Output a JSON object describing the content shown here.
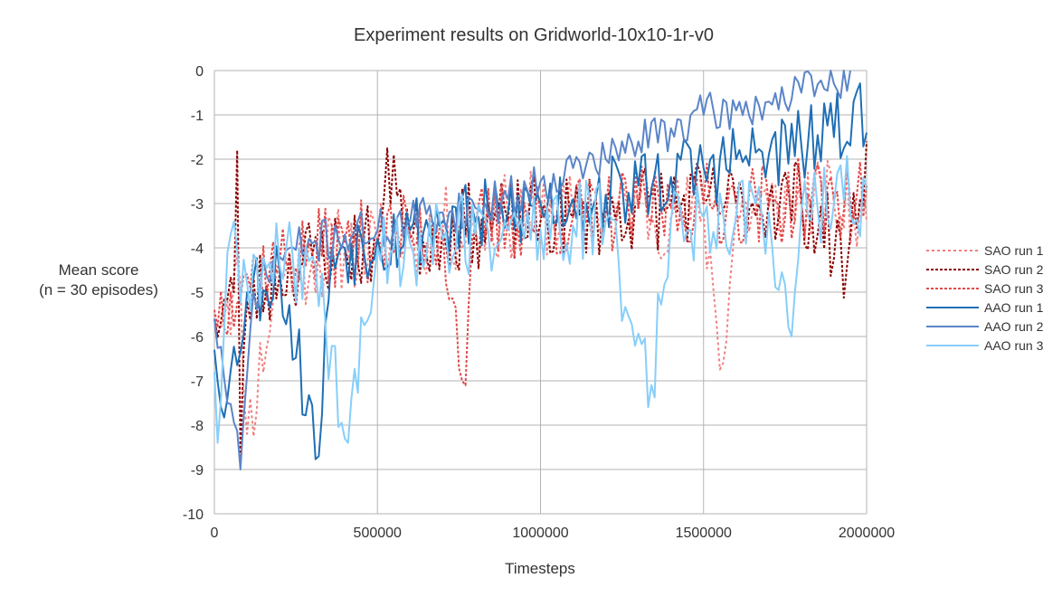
{
  "chart_data": {
    "type": "line",
    "title": "Experiment results on Gridworld-10x10-1r-v0",
    "xlabel": "Timesteps",
    "ylabel": [
      "Mean score",
      "(n = 30 episodes)"
    ],
    "xlim": [
      0,
      2000000
    ],
    "ylim": [
      -10,
      0
    ],
    "xticks": [
      0,
      500000,
      1000000,
      1500000,
      2000000
    ],
    "yticks": [
      0,
      -1,
      -2,
      -3,
      -4,
      -5,
      -6,
      -7,
      -8,
      -9,
      -10
    ],
    "grid": true,
    "legend_position": "right",
    "x_step": 10000,
    "series": [
      {
        "name": "SAO run 1",
        "color": "#f08080",
        "dash": "3,3",
        "anchors": [
          [
            0,
            -5.5
          ],
          [
            40000,
            -5.2
          ],
          [
            80000,
            -4.8
          ],
          [
            100000,
            -8.2
          ],
          [
            200000,
            -4.5
          ],
          [
            300000,
            -4.3
          ],
          [
            400000,
            -4.0
          ],
          [
            500000,
            -3.9
          ],
          [
            600000,
            -3.7
          ],
          [
            700000,
            -3.6
          ],
          [
            800000,
            -3.5
          ],
          [
            900000,
            -3.3
          ],
          [
            1000000,
            -3.2
          ],
          [
            1100000,
            -3.3
          ],
          [
            1200000,
            -3.2
          ],
          [
            1300000,
            -3.1
          ],
          [
            1400000,
            -3.3
          ],
          [
            1500000,
            -3.2
          ],
          [
            1560000,
            -6.6
          ],
          [
            1600000,
            -3.2
          ],
          [
            1700000,
            -3.1
          ],
          [
            1800000,
            -3.0
          ],
          [
            1900000,
            -3.0
          ],
          [
            2000000,
            -3.4
          ]
        ],
        "noise": 1.0,
        "seed": 11
      },
      {
        "name": "SAO run 2",
        "color": "#8b0000",
        "dash": "3,2",
        "anchors": [
          [
            0,
            -5.6
          ],
          [
            60000,
            -5.0
          ],
          [
            70000,
            -1.8
          ],
          [
            80000,
            -8.7
          ],
          [
            100000,
            -5.2
          ],
          [
            200000,
            -4.6
          ],
          [
            300000,
            -4.2
          ],
          [
            400000,
            -4.0
          ],
          [
            500000,
            -3.9
          ],
          [
            550000,
            -1.9
          ],
          [
            600000,
            -3.8
          ],
          [
            700000,
            -3.6
          ],
          [
            800000,
            -3.5
          ],
          [
            900000,
            -3.4
          ],
          [
            1000000,
            -3.4
          ],
          [
            1100000,
            -3.3
          ],
          [
            1200000,
            -3.2
          ],
          [
            1300000,
            -3.1
          ],
          [
            1400000,
            -3.0
          ],
          [
            1500000,
            -3.0
          ],
          [
            1600000,
            -3.0
          ],
          [
            1700000,
            -2.9
          ],
          [
            1800000,
            -2.9
          ],
          [
            1940000,
            -4.4
          ],
          [
            2000000,
            -1.6
          ]
        ],
        "noise": 1.0,
        "seed": 23
      },
      {
        "name": "SAO run 3",
        "color": "#e34a4a",
        "dash": "3,2",
        "anchors": [
          [
            0,
            -5.4
          ],
          [
            50000,
            -5.0
          ],
          [
            100000,
            -4.6
          ],
          [
            200000,
            -4.3
          ],
          [
            300000,
            -4.1
          ],
          [
            400000,
            -3.9
          ],
          [
            500000,
            -3.8
          ],
          [
            600000,
            -3.7
          ],
          [
            700000,
            -3.6
          ],
          [
            770000,
            -7.1
          ],
          [
            800000,
            -3.5
          ],
          [
            900000,
            -3.4
          ],
          [
            1000000,
            -3.3
          ],
          [
            1100000,
            -3.3
          ],
          [
            1200000,
            -3.2
          ],
          [
            1300000,
            -3.1
          ],
          [
            1400000,
            -3.1
          ],
          [
            1500000,
            -3.0
          ],
          [
            1600000,
            -3.0
          ],
          [
            1700000,
            -3.0
          ],
          [
            1800000,
            -2.9
          ],
          [
            1900000,
            -2.9
          ],
          [
            2000000,
            -2.6
          ]
        ],
        "noise": 0.95,
        "seed": 37
      },
      {
        "name": "AAO run 1",
        "color": "#1f6fb5",
        "dash": "",
        "anchors": [
          [
            0,
            -6.3
          ],
          [
            40000,
            -7.4
          ],
          [
            100000,
            -5.0
          ],
          [
            200000,
            -4.5
          ],
          [
            320000,
            -8.7
          ],
          [
            360000,
            -4.0
          ],
          [
            400000,
            -4.0
          ],
          [
            500000,
            -3.8
          ],
          [
            600000,
            -3.6
          ],
          [
            700000,
            -3.4
          ],
          [
            800000,
            -3.4
          ],
          [
            900000,
            -3.2
          ],
          [
            1000000,
            -3.0
          ],
          [
            1100000,
            -2.9
          ],
          [
            1200000,
            -2.8
          ],
          [
            1300000,
            -2.6
          ],
          [
            1400000,
            -2.4
          ],
          [
            1500000,
            -2.2
          ],
          [
            1600000,
            -2.0
          ],
          [
            1700000,
            -1.9
          ],
          [
            1800000,
            -1.7
          ],
          [
            1900000,
            -1.5
          ],
          [
            1960000,
            -0.7
          ],
          [
            2000000,
            -1.4
          ]
        ],
        "noise": 0.9,
        "seed": 53
      },
      {
        "name": "AAO run 2",
        "color": "#5b85c8",
        "dash": "",
        "anchors": [
          [
            0,
            -5.6
          ],
          [
            80000,
            -9.0
          ],
          [
            120000,
            -5.0
          ],
          [
            200000,
            -4.2
          ],
          [
            300000,
            -3.9
          ],
          [
            400000,
            -3.7
          ],
          [
            500000,
            -3.6
          ],
          [
            600000,
            -3.4
          ],
          [
            700000,
            -3.2
          ],
          [
            800000,
            -3.1
          ],
          [
            900000,
            -2.9
          ],
          [
            1000000,
            -2.5
          ],
          [
            1100000,
            -2.2
          ],
          [
            1200000,
            -2.0
          ],
          [
            1300000,
            -1.6
          ],
          [
            1400000,
            -1.3
          ],
          [
            1500000,
            -1.0
          ],
          [
            1600000,
            -0.9
          ],
          [
            1700000,
            -0.7
          ],
          [
            1800000,
            -0.5
          ],
          [
            1900000,
            -0.3
          ],
          [
            1950000,
            0.0
          ]
        ],
        "noise": 0.5,
        "seed": 71
      },
      {
        "name": "AAO run 3",
        "color": "#87cefa",
        "dash": "",
        "anchors": [
          [
            0,
            -6.8
          ],
          [
            10000,
            -8.4
          ],
          [
            40000,
            -4.1
          ],
          [
            100000,
            -4.8
          ],
          [
            200000,
            -4.4
          ],
          [
            300000,
            -4.2
          ],
          [
            410000,
            -8.4
          ],
          [
            500000,
            -4.0
          ],
          [
            600000,
            -3.9
          ],
          [
            700000,
            -3.8
          ],
          [
            800000,
            -3.7
          ],
          [
            900000,
            -3.6
          ],
          [
            1000000,
            -3.6
          ],
          [
            1100000,
            -3.5
          ],
          [
            1200000,
            -3.4
          ],
          [
            1340000,
            -7.1
          ],
          [
            1400000,
            -3.4
          ],
          [
            1500000,
            -3.3
          ],
          [
            1600000,
            -3.3
          ],
          [
            1700000,
            -3.2
          ],
          [
            1770000,
            -6.0
          ],
          [
            1800000,
            -3.2
          ],
          [
            1900000,
            -3.0
          ],
          [
            2000000,
            -2.7
          ]
        ],
        "noise": 1.0,
        "seed": 89
      }
    ]
  }
}
